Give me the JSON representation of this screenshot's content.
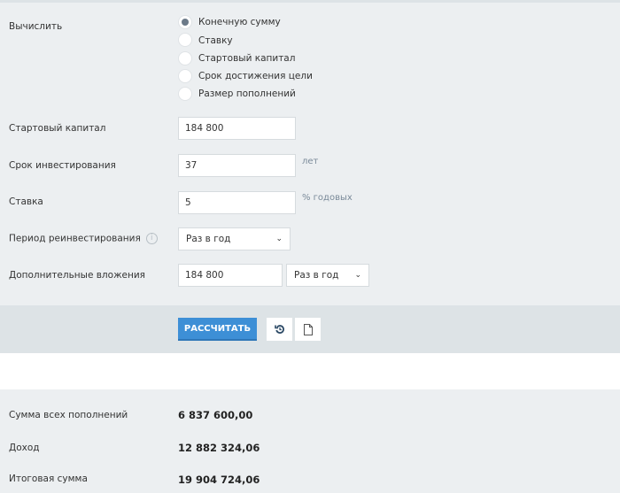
{
  "calc": {
    "label": "Вычислить",
    "options": [
      "Конечную сумму",
      "Ставку",
      "Стартовый капитал",
      "Срок достижения цели",
      "Размер пополнений"
    ],
    "selected": 0
  },
  "fields": {
    "start_capital": {
      "label": "Стартовый капитал",
      "value": "184 800"
    },
    "term": {
      "label": "Срок инвестирования",
      "value": "37",
      "unit": "лет"
    },
    "rate": {
      "label": "Ставка",
      "value": "5",
      "unit": "% годовых"
    },
    "period": {
      "label": "Период реинвестирования",
      "value": "Раз в год"
    },
    "additional": {
      "label": "Дополнительные вложения",
      "value": "184 800",
      "period": "Раз в год"
    }
  },
  "actions": {
    "calculate": "РАССЧИТАТЬ"
  },
  "results": [
    {
      "label": "Сумма всех пополнений",
      "value": "6 837 600,00"
    },
    {
      "label": "Доход",
      "value": "12 882 324,06"
    },
    {
      "label": "Итоговая сумма",
      "value": "19 904 724,06"
    }
  ]
}
